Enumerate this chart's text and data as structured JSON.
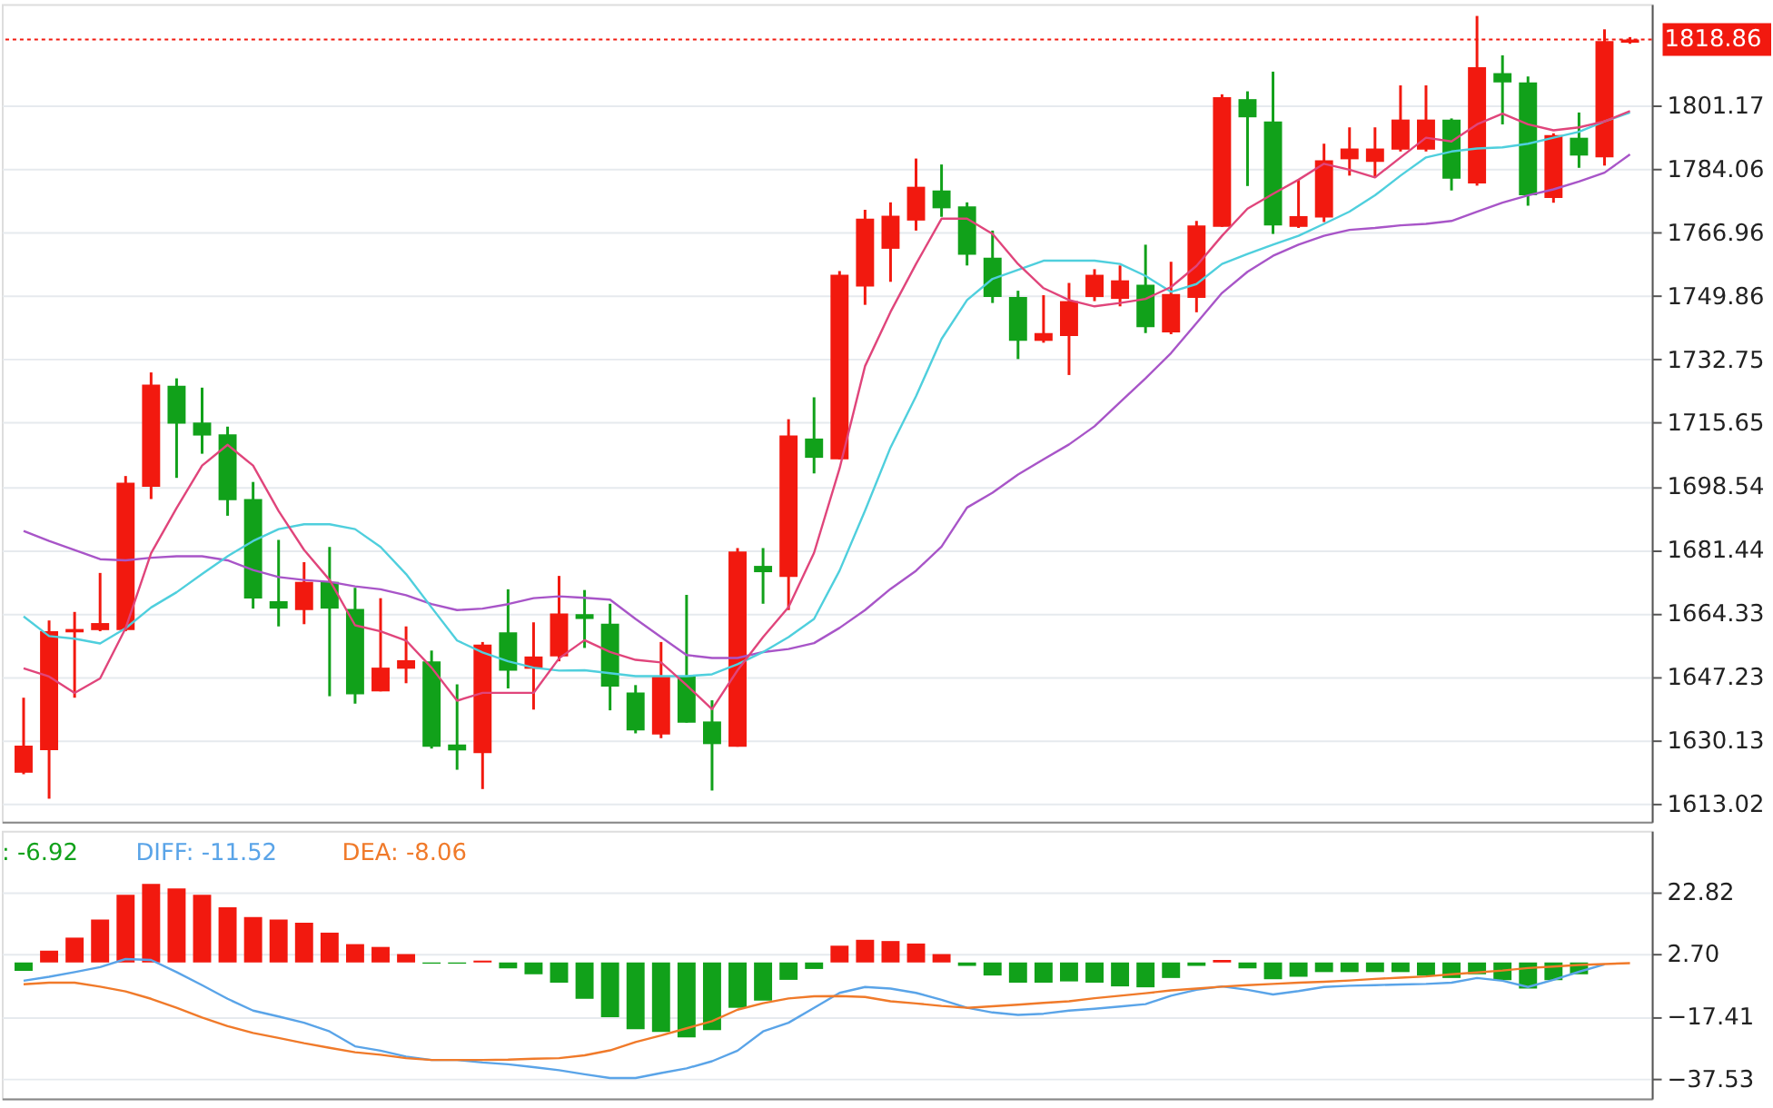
{
  "chart_data": [
    {
      "type": "candlestick",
      "categories": [
        null,
        null,
        null,
        null,
        null,
        null,
        null,
        null,
        null,
        null,
        null,
        null,
        null,
        null,
        null,
        null,
        null,
        null,
        null,
        null,
        null,
        null,
        null,
        null,
        null,
        null,
        null,
        null,
        null,
        null,
        null,
        null,
        null,
        null,
        null,
        null,
        null,
        null,
        null,
        null,
        null,
        null,
        null,
        null,
        null,
        null,
        null,
        null,
        null,
        null,
        null,
        null,
        null,
        null,
        null,
        null,
        null,
        null,
        null,
        null,
        null,
        null,
        null,
        null
      ],
      "ohlc": [
        [
          1621.4,
          1641.6,
          1621.0,
          1628.7
        ],
        [
          1627.5,
          1662.4,
          1614.4,
          1659.5
        ],
        [
          1659.2,
          1664.7,
          1641.6,
          1660.1
        ],
        [
          1659.8,
          1675.2,
          1659.5,
          1661.7
        ],
        [
          1659.8,
          1701.3,
          1659.5,
          1699.5
        ],
        [
          1698.4,
          1729.2,
          1695.1,
          1725.9
        ],
        [
          1725.6,
          1727.6,
          1700.8,
          1715.4
        ],
        [
          1715.7,
          1725.1,
          1707.3,
          1712.2
        ],
        [
          1712.5,
          1714.6,
          1690.6,
          1694.8
        ],
        [
          1695.1,
          1699.7,
          1665.6,
          1668.3
        ],
        [
          1667.6,
          1684.1,
          1660.8,
          1665.6
        ],
        [
          1665.2,
          1678.1,
          1661.4,
          1672.8
        ],
        [
          1672.8,
          1682.2,
          1642.0,
          1665.6
        ],
        [
          1665.5,
          1671.2,
          1640.0,
          1642.5
        ],
        [
          1643.3,
          1668.4,
          1643.3,
          1649.7
        ],
        [
          1649.4,
          1660.8,
          1645.5,
          1651.7
        ],
        [
          1651.4,
          1654.3,
          1627.9,
          1628.4
        ],
        [
          1629.0,
          1645.2,
          1622.2,
          1627.4
        ],
        [
          1626.7,
          1656.6,
          1617.0,
          1655.9
        ],
        [
          1659.2,
          1670.8,
          1644.1,
          1648.9
        ],
        [
          1649.4,
          1661.9,
          1638.4,
          1652.7
        ],
        [
          1652.7,
          1674.4,
          1651.4,
          1664.3
        ],
        [
          1664.1,
          1670.6,
          1655.0,
          1662.8
        ],
        [
          1661.5,
          1666.9,
          1638.2,
          1644.6
        ],
        [
          1643.0,
          1645.0,
          1632.0,
          1632.8
        ],
        [
          1631.7,
          1656.6,
          1630.7,
          1647.4
        ],
        [
          1647.4,
          1669.3,
          1634.9,
          1634.9
        ],
        [
          1635.2,
          1640.9,
          1616.6,
          1629.1
        ],
        [
          1628.4,
          1681.9,
          1628.4,
          1681.0
        ],
        [
          1677.1,
          1681.9,
          1666.9,
          1675.4
        ],
        [
          1674.1,
          1716.6,
          1665.2,
          1712.2
        ],
        [
          1711.4,
          1722.5,
          1702.0,
          1706.2
        ],
        [
          1705.8,
          1756.5,
          1705.8,
          1755.5
        ],
        [
          1752.3,
          1773.0,
          1747.4,
          1770.6
        ],
        [
          1762.5,
          1775.0,
          1753.6,
          1771.4
        ],
        [
          1770.1,
          1786.8,
          1767.4,
          1779.2
        ],
        [
          1778.2,
          1785.2,
          1771.1,
          1773.4
        ],
        [
          1773.9,
          1775.0,
          1758.0,
          1760.9
        ],
        [
          1760.1,
          1767.4,
          1747.9,
          1749.5
        ],
        [
          1749.5,
          1751.2,
          1732.8,
          1737.7
        ],
        [
          1737.7,
          1750.0,
          1737.2,
          1739.8
        ],
        [
          1739.0,
          1753.3,
          1728.5,
          1748.4
        ],
        [
          1749.5,
          1757.0,
          1748.4,
          1755.5
        ],
        [
          1749.0,
          1758.0,
          1747.0,
          1754.0
        ],
        [
          1752.8,
          1763.6,
          1739.8,
          1741.4
        ],
        [
          1740.0,
          1759.0,
          1739.5,
          1750.3
        ],
        [
          1749.3,
          1770.0,
          1745.4,
          1768.8
        ],
        [
          1768.4,
          1804.1,
          1768.4,
          1803.3
        ],
        [
          1802.8,
          1804.9,
          1779.4,
          1797.9
        ],
        [
          1796.8,
          1810.2,
          1766.5,
          1768.8
        ],
        [
          1768.4,
          1781.1,
          1768.1,
          1771.3
        ],
        [
          1770.9,
          1790.8,
          1769.7,
          1786.3
        ],
        [
          1786.6,
          1795.2,
          1782.2,
          1789.5
        ],
        [
          1785.9,
          1795.2,
          1781.7,
          1789.5
        ],
        [
          1789.2,
          1806.5,
          1788.7,
          1797.3
        ],
        [
          1789.2,
          1806.5,
          1788.7,
          1797.3
        ],
        [
          1797.3,
          1797.6,
          1778.2,
          1781.4
        ],
        [
          1780.1,
          1825.2,
          1779.5,
          1811.4
        ],
        [
          1809.8,
          1814.6,
          1796.0,
          1807.3
        ],
        [
          1807.3,
          1808.9,
          1774.1,
          1776.9
        ],
        [
          1776.2,
          1793.6,
          1774.9,
          1793.1
        ],
        [
          1792.4,
          1799.2,
          1784.3,
          1787.6
        ],
        [
          1787.1,
          1821.6,
          1784.9,
          1818.4
        ],
        [
          1818.0,
          1819.5,
          1817.7,
          1818.86
        ]
      ],
      "colors": [
        "#f2190f",
        "#f2190f",
        "#f2190f",
        "#f2190f",
        "#f2190f",
        "#f2190f",
        "#11a11a",
        "#11a11a",
        "#11a11a",
        "#11a11a",
        "#11a11a",
        "#f2190f",
        "#11a11a",
        "#11a11a",
        "#f2190f",
        "#f2190f",
        "#11a11a",
        "#11a11a",
        "#f2190f",
        "#11a11a",
        "#f2190f",
        "#f2190f",
        "#11a11a",
        "#11a11a",
        "#11a11a",
        "#f2190f",
        "#11a11a",
        "#11a11a",
        "#f2190f",
        "#11a11a",
        "#f2190f",
        "#11a11a",
        "#f2190f",
        "#f2190f",
        "#f2190f",
        "#f2190f",
        "#11a11a",
        "#11a11a",
        "#11a11a",
        "#11a11a",
        "#f2190f",
        "#f2190f",
        "#f2190f",
        "#f2190f",
        "#11a11a",
        "#f2190f",
        "#f2190f",
        "#f2190f",
        "#11a11a",
        "#11a11a",
        "#f2190f",
        "#f2190f",
        "#f2190f",
        "#f2190f",
        "#f2190f",
        "#f2190f",
        "#11a11a",
        "#f2190f",
        "#11a11a",
        "#11a11a",
        "#f2190f",
        "#11a11a",
        "#f2190f",
        "#f2190f"
      ],
      "series": [
        {
          "type": "line",
          "color": "#a855c8",
          "values": [
            1686.5,
            1683.8,
            1681.4,
            1678.9,
            1678.6,
            1679.3,
            1679.7,
            1679.7,
            1678.6,
            1676.0,
            1674.1,
            1673.3,
            1672.8,
            1671.6,
            1670.8,
            1669.2,
            1666.8,
            1665.2,
            1665.6,
            1666.8,
            1668.4,
            1668.9,
            1668.5,
            1668.0,
            1662.8,
            1657.9,
            1653.1,
            1652.3,
            1652.3,
            1653.9,
            1654.7,
            1656.3,
            1660.4,
            1665.2,
            1670.9,
            1675.8,
            1682.3,
            1692.8,
            1696.8,
            1701.7,
            1705.8,
            1709.8,
            1714.7,
            1721.2,
            1727.6,
            1734.4,
            1742.5,
            1750.6,
            1756.3,
            1760.6,
            1763.6,
            1766.0,
            1767.6,
            1768.1,
            1768.8,
            1769.2,
            1770.0,
            1772.5,
            1774.9,
            1776.9,
            1778.5,
            1780.6,
            1783.0,
            1787.9
          ]
        },
        {
          "type": "line",
          "color": "#4fcfdd",
          "values": [
            1663.5,
            1658.2,
            1657.5,
            1656.2,
            1660.3,
            1665.9,
            1670.0,
            1674.9,
            1679.7,
            1683.8,
            1687.0,
            1688.3,
            1688.3,
            1687.0,
            1682.2,
            1674.9,
            1665.9,
            1657.0,
            1653.8,
            1651.4,
            1649.7,
            1648.9,
            1649.0,
            1648.2,
            1647.4,
            1647.4,
            1647.4,
            1647.9,
            1650.6,
            1653.9,
            1657.9,
            1662.8,
            1675.8,
            1692.0,
            1709.0,
            1722.8,
            1738.2,
            1748.7,
            1754.4,
            1756.8,
            1759.3,
            1759.3,
            1759.3,
            1758.4,
            1755.2,
            1750.9,
            1753.0,
            1758.4,
            1761.1,
            1763.6,
            1766.0,
            1769.2,
            1772.5,
            1776.9,
            1782.2,
            1787.1,
            1788.7,
            1789.5,
            1789.8,
            1790.8,
            1792.4,
            1794.0,
            1796.8,
            1799.2
          ]
        },
        {
          "type": "line",
          "color": "#e0457b",
          "values": [
            1649.5,
            1647.3,
            1642.9,
            1646.8,
            1660.3,
            1680.5,
            1692.7,
            1704.1,
            1709.7,
            1704.1,
            1691.9,
            1681.4,
            1673.3,
            1661.1,
            1659.5,
            1657.0,
            1649.7,
            1640.8,
            1642.9,
            1642.9,
            1642.9,
            1652.2,
            1657.1,
            1653.9,
            1651.8,
            1651.1,
            1645.0,
            1638.5,
            1649.0,
            1657.9,
            1666.0,
            1680.6,
            1703.3,
            1730.9,
            1745.5,
            1758.4,
            1770.6,
            1770.6,
            1766.5,
            1758.4,
            1751.9,
            1748.7,
            1747.0,
            1747.9,
            1749.0,
            1752.2,
            1757.9,
            1766.0,
            1773.3,
            1777.3,
            1781.1,
            1785.4,
            1783.8,
            1781.7,
            1787.1,
            1792.4,
            1791.4,
            1796.0,
            1798.9,
            1796.0,
            1794.4,
            1795.2,
            1796.8,
            1799.6
          ]
        }
      ],
      "ylim": [
        1608.2,
        1828.4
      ],
      "yticks": [
        1613.02,
        1630.13,
        1647.23,
        1664.33,
        1681.44,
        1698.54,
        1715.65,
        1732.75,
        1749.86,
        1766.96,
        1784.06,
        1801.17
      ],
      "ref_lines": [
        {
          "axis": "y",
          "value": 1818.86,
          "label": "1818.86",
          "color": "#f2190f",
          "line_style": "dotted"
        }
      ],
      "grid": "y",
      "tick_labels": "y"
    },
    {
      "type": "bar",
      "categories": [
        null,
        null,
        null,
        null,
        null,
        null,
        null,
        null,
        null,
        null,
        null,
        null,
        null,
        null,
        null,
        null,
        null,
        null,
        null,
        null,
        null,
        null,
        null,
        null,
        null,
        null,
        null,
        null,
        null,
        null,
        null,
        null,
        null,
        null,
        null,
        null,
        null,
        null,
        null,
        null,
        null,
        null,
        null,
        null,
        null,
        null,
        null,
        null,
        null,
        null,
        null,
        null,
        null,
        null,
        null,
        null,
        null,
        null,
        null,
        null,
        null,
        null,
        null,
        null
      ],
      "series": [
        {
          "type": "bar",
          "values": [
            -2.7,
            3.8,
            8.0,
            13.8,
            21.8,
            25.3,
            23.8,
            21.8,
            17.8,
            14.6,
            13.8,
            12.8,
            9.6,
            5.9,
            5.0,
            2.7,
            -0.4,
            -0.4,
            0.6,
            -1.9,
            -3.8,
            -6.5,
            -11.7,
            -17.6,
            -21.5,
            -22.4,
            -24.1,
            -21.8,
            -14.6,
            -12.3,
            -5.6,
            -2.1,
            5.4,
            7.3,
            6.9,
            6.1,
            2.7,
            -1.1,
            -4.2,
            -6.5,
            -6.5,
            -6.1,
            -6.5,
            -7.7,
            -8.0,
            -5.0,
            -1.1,
            0.8,
            -1.9,
            -5.4,
            -4.6,
            -3.1,
            -3.1,
            -3.1,
            -3.1,
            -4.2,
            -5.0,
            -3.8,
            -5.7,
            -8.4,
            -5.7,
            -3.8,
            null,
            null
          ],
          "colors": [
            "#11a11a",
            "#f2190f",
            "#f2190f",
            "#f2190f",
            "#f2190f",
            "#f2190f",
            "#f2190f",
            "#f2190f",
            "#f2190f",
            "#f2190f",
            "#f2190f",
            "#f2190f",
            "#f2190f",
            "#f2190f",
            "#f2190f",
            "#f2190f",
            "#11a11a",
            "#11a11a",
            "#f2190f",
            "#11a11a",
            "#11a11a",
            "#11a11a",
            "#11a11a",
            "#11a11a",
            "#11a11a",
            "#11a11a",
            "#11a11a",
            "#11a11a",
            "#11a11a",
            "#11a11a",
            "#11a11a",
            "#11a11a",
            "#f2190f",
            "#f2190f",
            "#f2190f",
            "#f2190f",
            "#f2190f",
            "#11a11a",
            "#11a11a",
            "#11a11a",
            "#11a11a",
            "#11a11a",
            "#11a11a",
            "#11a11a",
            "#11a11a",
            "#11a11a",
            "#11a11a",
            "#f2190f",
            "#11a11a",
            "#11a11a",
            "#11a11a",
            "#11a11a",
            "#11a11a",
            "#11a11a",
            "#11a11a",
            "#11a11a",
            "#11a11a",
            "#11a11a",
            "#11a11a",
            "#11a11a",
            "#11a11a",
            "#11a11a",
            "#11a11a",
            "#11a11a"
          ]
        },
        {
          "type": "line",
          "name": "DIFF: -11.52",
          "color": "#5aa4e8",
          "values": [
            -5.9,
            -4.6,
            -3.1,
            -1.5,
            1.1,
            0.8,
            -3.1,
            -7.3,
            -11.7,
            -15.5,
            -17.4,
            -19.4,
            -22.2,
            -27.0,
            -28.4,
            -30.3,
            -31.4,
            -31.4,
            -32.2,
            -32.8,
            -33.7,
            -34.7,
            -36.0,
            -37.2,
            -37.2,
            -35.6,
            -34.1,
            -31.8,
            -28.4,
            -22.2,
            -19.4,
            -14.6,
            -9.8,
            -7.9,
            -8.4,
            -9.8,
            -12.0,
            -14.6,
            -16.1,
            -16.9,
            -16.5,
            -15.5,
            -14.9,
            -14.2,
            -13.4,
            -10.7,
            -8.8,
            -7.7,
            -8.8,
            -10.3,
            -9.2,
            -7.9,
            -7.5,
            -7.3,
            -7.1,
            -6.9,
            -6.5,
            -5.0,
            -5.9,
            -7.9,
            -5.6,
            -3.0,
            -0.6,
            null
          ]
        },
        {
          "type": "line",
          "name": "DEA: -8.06",
          "color": "#f07a2a",
          "values": [
            -7.0,
            -6.5,
            -6.5,
            -7.8,
            -9.3,
            -11.7,
            -14.6,
            -17.7,
            -20.5,
            -22.7,
            -24.3,
            -26.0,
            -27.5,
            -28.9,
            -29.7,
            -30.8,
            -31.4,
            -31.4,
            -31.4,
            -31.3,
            -31.0,
            -30.8,
            -29.9,
            -28.3,
            -25.6,
            -23.5,
            -21.2,
            -18.9,
            -15.2,
            -13.1,
            -11.6,
            -10.9,
            -10.8,
            -11.1,
            -12.5,
            -13.2,
            -14.0,
            -14.6,
            -14.1,
            -13.6,
            -13.0,
            -12.5,
            -11.5,
            -10.7,
            -9.9,
            -9.0,
            -8.4,
            -7.8,
            -7.3,
            -6.9,
            -6.5,
            -6.2,
            -5.8,
            -5.3,
            -4.9,
            -4.5,
            -3.8,
            -3.2,
            -2.6,
            -1.8,
            -1.3,
            -0.8,
            -0.5,
            -0.2
          ]
        }
      ],
      "annotations": [
        ": -6.92"
      ],
      "ylim": [
        -43.8,
        42.4
      ],
      "yticks": [
        22.82,
        {
          "value": 2.7,
          "label": "2.70"
        },
        -17.41,
        -37.53
      ],
      "grid": "y",
      "tick_labels": "y",
      "legend": "top left"
    }
  ]
}
